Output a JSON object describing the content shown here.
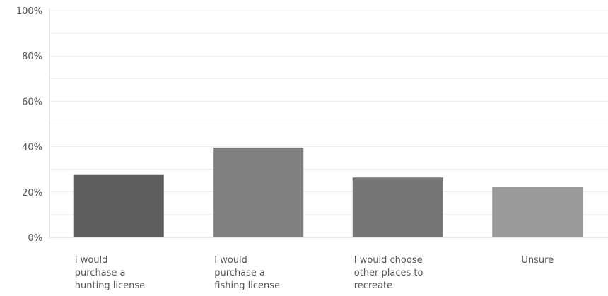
{
  "chart_data": {
    "type": "bar",
    "categories": [
      [
        "I would",
        "purchase a",
        "hunting license"
      ],
      [
        "I would",
        "purchase a",
        "fishing license"
      ],
      [
        "I would choose",
        "other places to",
        "recreate"
      ],
      [
        "Unsure"
      ]
    ],
    "values": [
      27.5,
      39.6,
      26.4,
      22.4
    ],
    "ylim": [
      0,
      100
    ],
    "yticks": [
      "0%",
      "20%",
      "40%",
      "60%",
      "80%",
      "100%"
    ],
    "bar_colors": [
      "#5e5e5e",
      "#7f7f7f",
      "#767676",
      "#9a9a9a"
    ],
    "grid": true
  }
}
